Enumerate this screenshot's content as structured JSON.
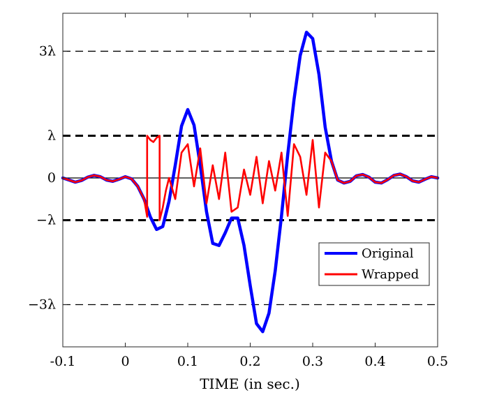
{
  "chart_data": {
    "type": "line",
    "title": "",
    "xlabel": "TIME (in sec.)",
    "ylabel": "",
    "xlim": [
      -0.1,
      0.5
    ],
    "ylim": [
      -4.0,
      3.9
    ],
    "lambda": 1,
    "grid": false,
    "legend_position": "bottom-right",
    "x_ticks": [
      -0.1,
      0,
      0.1,
      0.2,
      0.3,
      0.4,
      0.5
    ],
    "x_tick_labels": [
      "-0.1",
      "0",
      "0.1",
      "0.2",
      "0.3",
      "0.4",
      "0.5"
    ],
    "y_ticks": [
      {
        "value": 3,
        "label": "3λ",
        "style": "dashed-thin"
      },
      {
        "value": 1,
        "label": "λ",
        "style": "dashed-thick"
      },
      {
        "value": 0,
        "label": "0",
        "style": "solid-thin"
      },
      {
        "value": -1,
        "label": "−λ",
        "style": "dashed-thick"
      },
      {
        "value": -3,
        "label": "−3λ",
        "style": "dashed-thin"
      }
    ],
    "series": [
      {
        "name": "Original",
        "color": "#0000ff",
        "x": [
          -0.1,
          -0.09,
          -0.08,
          -0.07,
          -0.06,
          -0.05,
          -0.04,
          -0.03,
          -0.02,
          -0.01,
          0,
          0.01,
          0.02,
          0.03,
          0.04,
          0.05,
          0.06,
          0.07,
          0.08,
          0.09,
          0.1,
          0.11,
          0.12,
          0.13,
          0.14,
          0.15,
          0.16,
          0.17,
          0.18,
          0.19,
          0.2,
          0.21,
          0.22,
          0.23,
          0.24,
          0.25,
          0.26,
          0.27,
          0.28,
          0.29,
          0.3,
          0.31,
          0.32,
          0.33,
          0.34,
          0.35,
          0.36,
          0.37,
          0.38,
          0.39,
          0.4,
          0.41,
          0.42,
          0.43,
          0.44,
          0.45,
          0.46,
          0.47,
          0.48,
          0.49,
          0.5
        ],
        "y": [
          0,
          -0.05,
          -0.1,
          -0.06,
          0.02,
          0.06,
          0.03,
          -0.05,
          -0.08,
          -0.03,
          0.03,
          -0.02,
          -0.2,
          -0.5,
          -0.92,
          -1.22,
          -1.15,
          -0.55,
          0.3,
          1.23,
          1.62,
          1.25,
          0.3,
          -0.8,
          -1.55,
          -1.6,
          -1.3,
          -0.95,
          -0.95,
          -1.6,
          -2.55,
          -3.45,
          -3.64,
          -3.2,
          -2.2,
          -0.9,
          0.55,
          1.85,
          2.9,
          3.45,
          3.3,
          2.45,
          1.2,
          0.4,
          -0.05,
          -0.12,
          -0.08,
          0.05,
          0.08,
          0.02,
          -0.1,
          -0.12,
          -0.04,
          0.06,
          0.09,
          0.03,
          -0.07,
          -0.1,
          -0.03,
          0.03,
          0.0
        ]
      },
      {
        "name": "Wrapped",
        "color": "#ff0000",
        "x": [
          -0.1,
          -0.09,
          -0.08,
          -0.07,
          -0.06,
          -0.05,
          -0.04,
          -0.03,
          -0.02,
          -0.01,
          0,
          0.01,
          0.02,
          0.03,
          0.035,
          0.035,
          0.04,
          0.045,
          0.05,
          0.055,
          0.055,
          0.06,
          0.065,
          0.07,
          0.07,
          0.08,
          0.09,
          0.1,
          0.11,
          0.12,
          0.13,
          0.14,
          0.15,
          0.16,
          0.17,
          0.18,
          0.19,
          0.2,
          0.21,
          0.22,
          0.23,
          0.24,
          0.25,
          0.26,
          0.27,
          0.28,
          0.29,
          0.3,
          0.31,
          0.32,
          0.33,
          0.34,
          0.35,
          0.36,
          0.37,
          0.38,
          0.39,
          0.4,
          0.41,
          0.42,
          0.43,
          0.44,
          0.45,
          0.46,
          0.47,
          0.48,
          0.49,
          0.5
        ],
        "y": [
          0,
          -0.05,
          -0.1,
          -0.06,
          0.02,
          0.06,
          0.03,
          -0.05,
          -0.08,
          -0.03,
          0.03,
          -0.02,
          -0.2,
          -0.5,
          -0.92,
          1.0,
          0.9,
          0.85,
          0.95,
          1.0,
          -1.0,
          -0.7,
          -0.3,
          0.0,
          0.0,
          -0.5,
          0.6,
          0.8,
          -0.2,
          0.7,
          -0.6,
          0.3,
          -0.5,
          0.6,
          -0.8,
          -0.7,
          0.2,
          -0.4,
          0.5,
          -0.6,
          0.4,
          -0.3,
          0.6,
          -0.9,
          0.8,
          0.5,
          -0.4,
          0.9,
          -0.7,
          0.6,
          0.4,
          -0.05,
          -0.12,
          -0.08,
          0.05,
          0.08,
          0.02,
          -0.1,
          -0.12,
          -0.04,
          0.06,
          0.09,
          0.03,
          -0.07,
          -0.1,
          -0.03,
          0.03,
          0.0
        ]
      }
    ]
  }
}
